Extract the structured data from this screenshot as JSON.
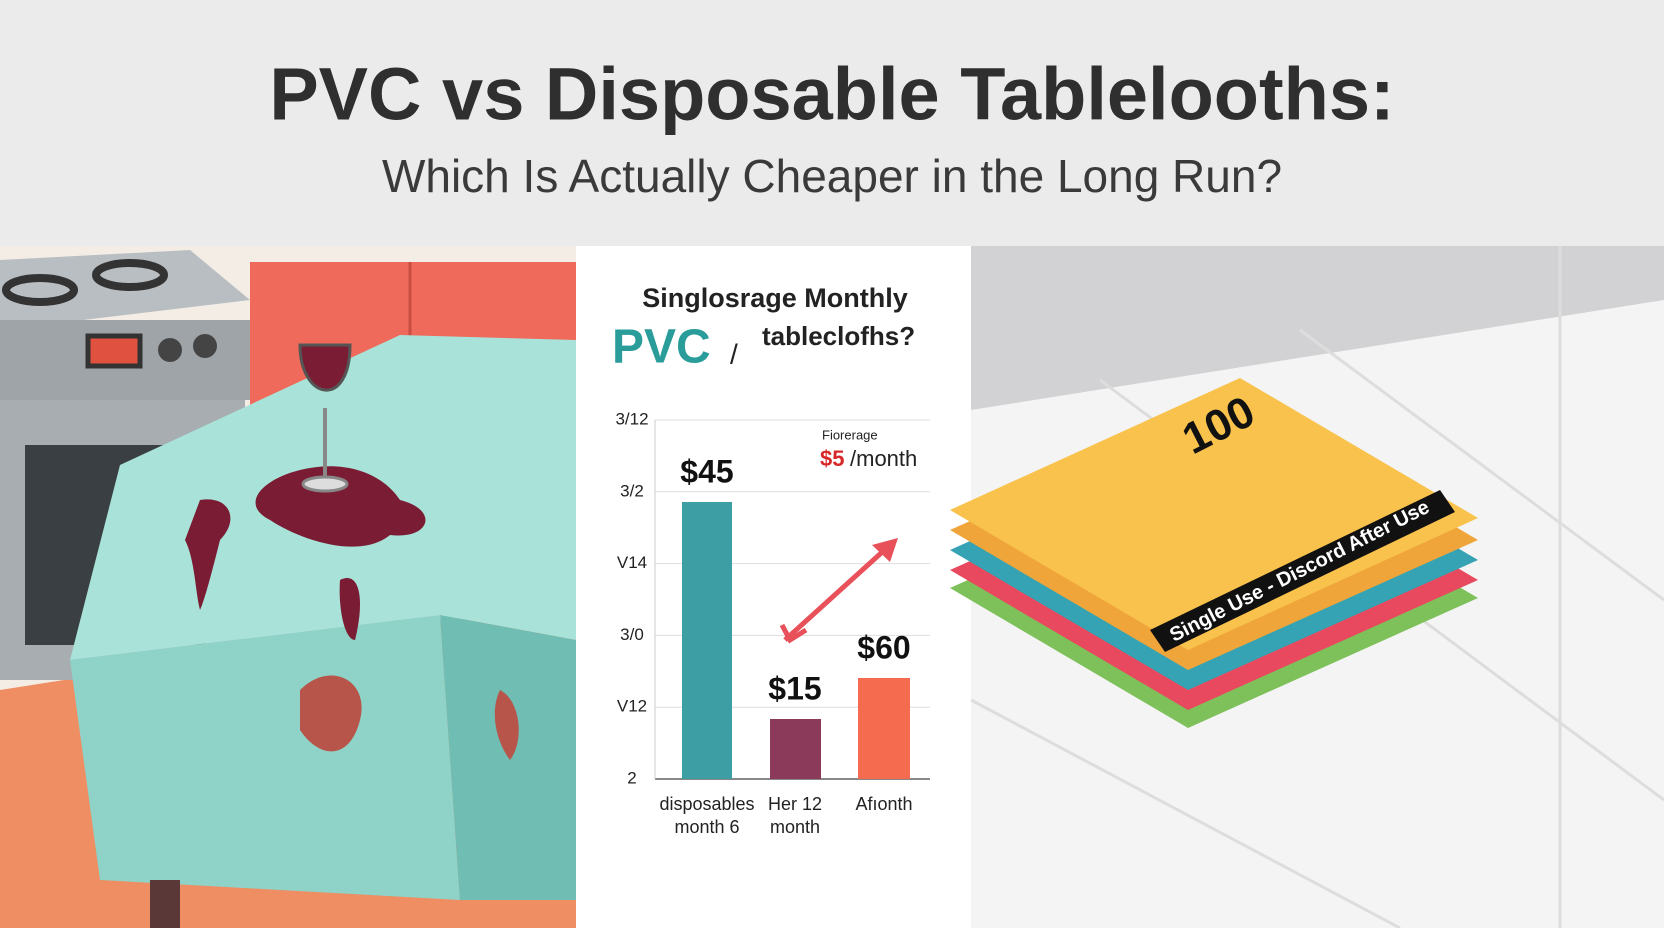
{
  "header": {
    "title": "PVC vs Disposable Tablelooths:",
    "subtitle": "Which Is Actually Cheaper in the Long Run?"
  },
  "chart": {
    "title": "Singlosrage Monthly",
    "pvc": "PVC",
    "slash": "/",
    "subtitle": "tableclofhs?",
    "axis_labels": [
      "3/12",
      "3/2",
      "V14",
      "3/0",
      "V12",
      "2"
    ],
    "annotation": {
      "note": "Fiorerage",
      "price": "$5",
      "unit": "/month"
    },
    "bars": [
      {
        "label": "$45",
        "category": [
          "disposables",
          "month 6"
        ]
      },
      {
        "label": "$15",
        "category": [
          "Her 12",
          "month"
        ]
      },
      {
        "label": "$60",
        "category": [
          "Afıonth"
        ]
      }
    ]
  },
  "stack": {
    "count": "100",
    "band": "Single Use - Discord After Use"
  }
}
